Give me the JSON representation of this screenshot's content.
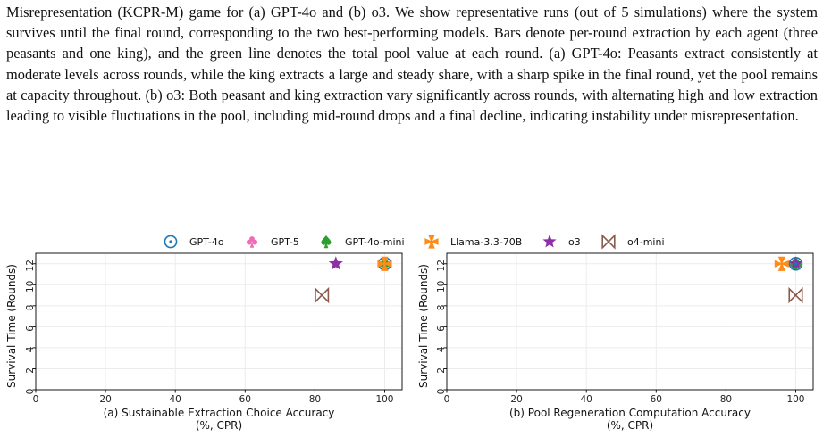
{
  "caption": "Misrepresentation (KCPR-M) game for (a) GPT-4o and (b) o3. We show representative runs (out of 5 simulations) where the system survives until the final round, corresponding to the two best-performing models. Bars denote per-round extraction by each agent (three peasants and one king), and the green line denotes the total pool value at each round. (a) GPT-4o: Peasants extract consistently at moderate levels across rounds, while the king extracts a large and steady share, with a sharp spike in the final round, yet the pool remains at capacity throughout. (b) o3: Both peasant and king extraction vary significantly across rounds, with alternating high and low extraction leading to visible fluctuations in the pool, including mid-round drops and a final decline, indicating instability under misrepresentation.",
  "legend": [
    {
      "name": "GPT-4o",
      "marker": "circle-dot",
      "color": "#1f77b4"
    },
    {
      "name": "GPT-5",
      "marker": "club",
      "color": "#f06bb5"
    },
    {
      "name": "GPT-4o-mini",
      "marker": "spade",
      "color": "#2ca02c"
    },
    {
      "name": "Llama-3.3-70B",
      "marker": "maltese-cross",
      "color": "#ff8c1a"
    },
    {
      "name": "o3",
      "marker": "star",
      "color": "#8e2fa8"
    },
    {
      "name": "o4-mini",
      "marker": "bowtie",
      "color": "#8c5a4a"
    }
  ],
  "chart_data": [
    {
      "type": "scatter",
      "xlabel_line1": "(a) Sustainable Extraction Choice Accuracy",
      "xlabel_line2": "(%, CPR)",
      "ylabel": "Survival Time (Rounds)",
      "xlim": [
        0,
        105
      ],
      "ylim": [
        0,
        13
      ],
      "xticks": [
        0,
        20,
        40,
        60,
        80,
        100
      ],
      "yticks": [
        0,
        2,
        4,
        6,
        8,
        10,
        12
      ],
      "grid": true,
      "points": [
        {
          "series": "GPT-4o",
          "x": 100,
          "y": 12
        },
        {
          "series": "GPT-5",
          "x": 100,
          "y": 12
        },
        {
          "series": "GPT-4o-mini",
          "x": 100,
          "y": 12
        },
        {
          "series": "Llama-3.3-70B",
          "x": 100,
          "y": 12
        },
        {
          "series": "o3",
          "x": 86,
          "y": 12
        },
        {
          "series": "o4-mini",
          "x": 82,
          "y": 9
        }
      ]
    },
    {
      "type": "scatter",
      "xlabel_line1": "(b) Pool Regeneration Computation Accuracy",
      "xlabel_line2": "(%, CPR)",
      "ylabel": "Survival Time (Rounds)",
      "xlim": [
        0,
        105
      ],
      "ylim": [
        0,
        13
      ],
      "xticks": [
        0,
        20,
        40,
        60,
        80,
        100
      ],
      "yticks": [
        0,
        2,
        4,
        6,
        8,
        10,
        12
      ],
      "grid": true,
      "points": [
        {
          "series": "Llama-3.3-70B",
          "x": 96,
          "y": 12
        },
        {
          "series": "GPT-5",
          "x": 100,
          "y": 12
        },
        {
          "series": "GPT-4o-mini",
          "x": 100,
          "y": 12
        },
        {
          "series": "o3",
          "x": 100,
          "y": 12
        },
        {
          "series": "GPT-4o",
          "x": 100,
          "y": 12
        },
        {
          "series": "o4-mini",
          "x": 100,
          "y": 9
        }
      ]
    }
  ]
}
